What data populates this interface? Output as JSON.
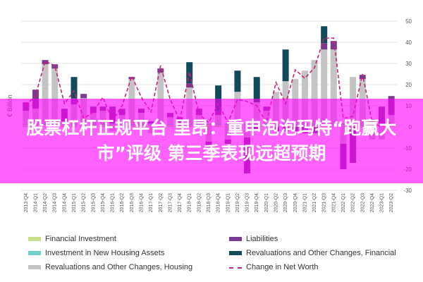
{
  "banner": {
    "text": "股票杠杆正规平台 里昂：重申泡泡玛特“跑赢大市”评级 第三季表现远超预期"
  },
  "chart_data": {
    "type": "bar",
    "stacked": true,
    "ylabel": "€ Billion",
    "ylim": [
      -30,
      50
    ],
    "yticks": [
      50,
      40,
      30,
      20,
      10,
      0,
      -10,
      -20,
      -30
    ],
    "categories": [
      "2013-Q4",
      "2014-Q1",
      "2014-Q2",
      "2014-Q3",
      "2014-Q4",
      "2015-Q1",
      "2015-Q2",
      "2015-Q3",
      "2015-Q4",
      "2016-Q1",
      "2016-Q2",
      "2016-Q3",
      "2016-Q4",
      "2017-Q1",
      "2017-Q2",
      "2017-Q3",
      "2017-Q4",
      "2018-Q1",
      "2018-Q2",
      "2018-Q3",
      "2018-Q4",
      "2019-Q1",
      "2019-Q2",
      "2019-Q3",
      "2019-Q4",
      "2020-Q1",
      "2020-Q2",
      "2020-Q3",
      "2020-Q4",
      "2021-Q1",
      "2021-Q2",
      "2021-Q3",
      "2021-Q4",
      "2022-Q1",
      "2022-Q2",
      "2022-Q3",
      "2022-Q4",
      "2023-Q1",
      "2023-Q2"
    ],
    "series": [
      {
        "name": "Financial Investment",
        "color": "#c8de8a",
        "values": [
          1,
          1,
          1,
          1,
          1,
          1,
          1,
          1,
          1,
          1,
          1,
          1,
          1,
          1,
          1,
          1,
          1,
          1,
          1,
          1,
          1,
          1,
          1,
          1,
          1,
          1,
          1,
          1,
          1,
          1,
          1,
          1,
          1,
          1,
          1,
          1,
          1,
          1,
          1
        ]
      },
      {
        "name": "Investment in New Housing Assets",
        "color": "#6fd0cc",
        "values": [
          0.6,
          0.6,
          0.6,
          0.6,
          0.6,
          0.6,
          0.6,
          0.6,
          0.6,
          0.6,
          0.6,
          0.6,
          0.6,
          0.6,
          0.6,
          0.6,
          0.6,
          0.6,
          0.6,
          0.6,
          0.6,
          0.6,
          0.6,
          0.6,
          0.6,
          0.6,
          0.6,
          0.6,
          0.6,
          0.6,
          0.6,
          0.6,
          0.6,
          0.6,
          0.6,
          0.6,
          0.6,
          0.6,
          0.6
        ]
      },
      {
        "name": "Revaluations and Other Changes, Housing",
        "color": "#c4c4c4",
        "values": [
          6,
          7,
          28,
          26,
          1,
          9,
          12,
          5,
          6,
          -2,
          4,
          21,
          5,
          -3,
          24,
          3,
          -2,
          17,
          4,
          -7,
          4,
          -6,
          15,
          -5,
          10,
          6,
          15,
          20,
          21,
          25,
          30,
          35,
          35,
          -8,
          22,
          21,
          -6,
          -6,
          4
        ]
      },
      {
        "name": "Liabilities",
        "color": "#7a3b8f",
        "values": [
          4,
          9,
          2,
          2,
          6,
          3,
          2,
          3,
          2,
          8,
          3,
          1,
          2,
          1,
          2,
          2,
          3,
          2,
          3,
          -3,
          2,
          -2,
          -1,
          -17,
          -2,
          2,
          -2,
          -2,
          -2,
          -3,
          -3,
          3,
          4,
          -12,
          -17,
          2,
          2,
          8,
          9
        ]
      },
      {
        "name": "Revaluations and Other Changes, Financial",
        "color": "#124a5c",
        "values": [
          0,
          0,
          0,
          0,
          0,
          10,
          0,
          0,
          0,
          0,
          0,
          0,
          0,
          0,
          0,
          0,
          0,
          10,
          0,
          0,
          12,
          0,
          10,
          0,
          12,
          0,
          0,
          15,
          0,
          0,
          0,
          8,
          0,
          0,
          0,
          0,
          0,
          0,
          0
        ]
      }
    ],
    "line": {
      "name": "Change in Net Worth",
      "color": "#cc1f7a",
      "values": [
        10,
        15,
        31,
        29,
        11,
        17,
        4,
        7,
        14,
        3,
        10,
        24,
        14,
        7,
        29,
        13,
        3,
        26,
        6,
        2,
        11,
        2,
        13,
        12,
        10,
        2,
        21,
        11,
        27,
        23,
        28,
        42,
        42,
        4,
        5,
        25,
        2,
        0,
        2
      ]
    },
    "legend_position": "bottom",
    "grid": true
  }
}
